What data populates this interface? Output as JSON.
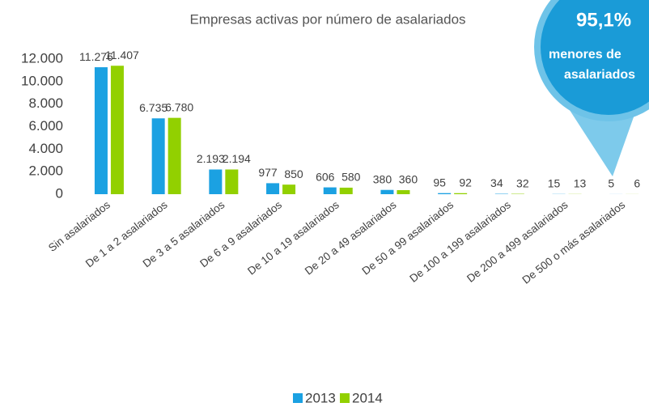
{
  "chart_data": {
    "type": "bar",
    "title": "Empresas activas por número de asalariados",
    "categories": [
      "Sin asalariados",
      "De 1 a 2 asalariados",
      "De 3 a 5 asalariados",
      "De 6 a 9 asalariados",
      "De 10 a 19 asalariados",
      "De 20 a 49 asalariados",
      "De 50 a 99 asalariados",
      "De 100 a 199 asalariados",
      "De 200 a 499 asalariados",
      "De 500 o más asalariados"
    ],
    "series": [
      {
        "name": "2013",
        "color": "#1ba1e2",
        "values": [
          11276,
          6735,
          2193,
          977,
          606,
          380,
          95,
          34,
          15,
          5
        ],
        "value_labels": [
          "11.276",
          "6.735",
          "2.193",
          "977",
          "606",
          "380",
          "95",
          "34",
          "15",
          "5"
        ]
      },
      {
        "name": "2014",
        "color": "#92d000",
        "values": [
          11407,
          6780,
          2194,
          850,
          580,
          360,
          92,
          32,
          13,
          6
        ],
        "value_labels": [
          "11.407",
          "6.780",
          "2.194",
          "850",
          "580",
          "360",
          "92",
          "32",
          "13",
          "6"
        ]
      }
    ],
    "ylim": [
      0,
      12000
    ],
    "yticks": [
      0,
      {
        "value": 2000,
        "label": "2.000"
      },
      {
        "value": 4000,
        "label": "4.000"
      },
      {
        "value": 6000,
        "label": "6.000"
      },
      {
        "value": 8000,
        "label": "8.000"
      },
      {
        "value": 10000,
        "label": "10.000"
      },
      {
        "value": 12000,
        "label": "12.000"
      }
    ],
    "grid": false,
    "legend": "bottom",
    "callout": [
      "95,1%",
      "menores de",
      "asalariados"
    ]
  }
}
